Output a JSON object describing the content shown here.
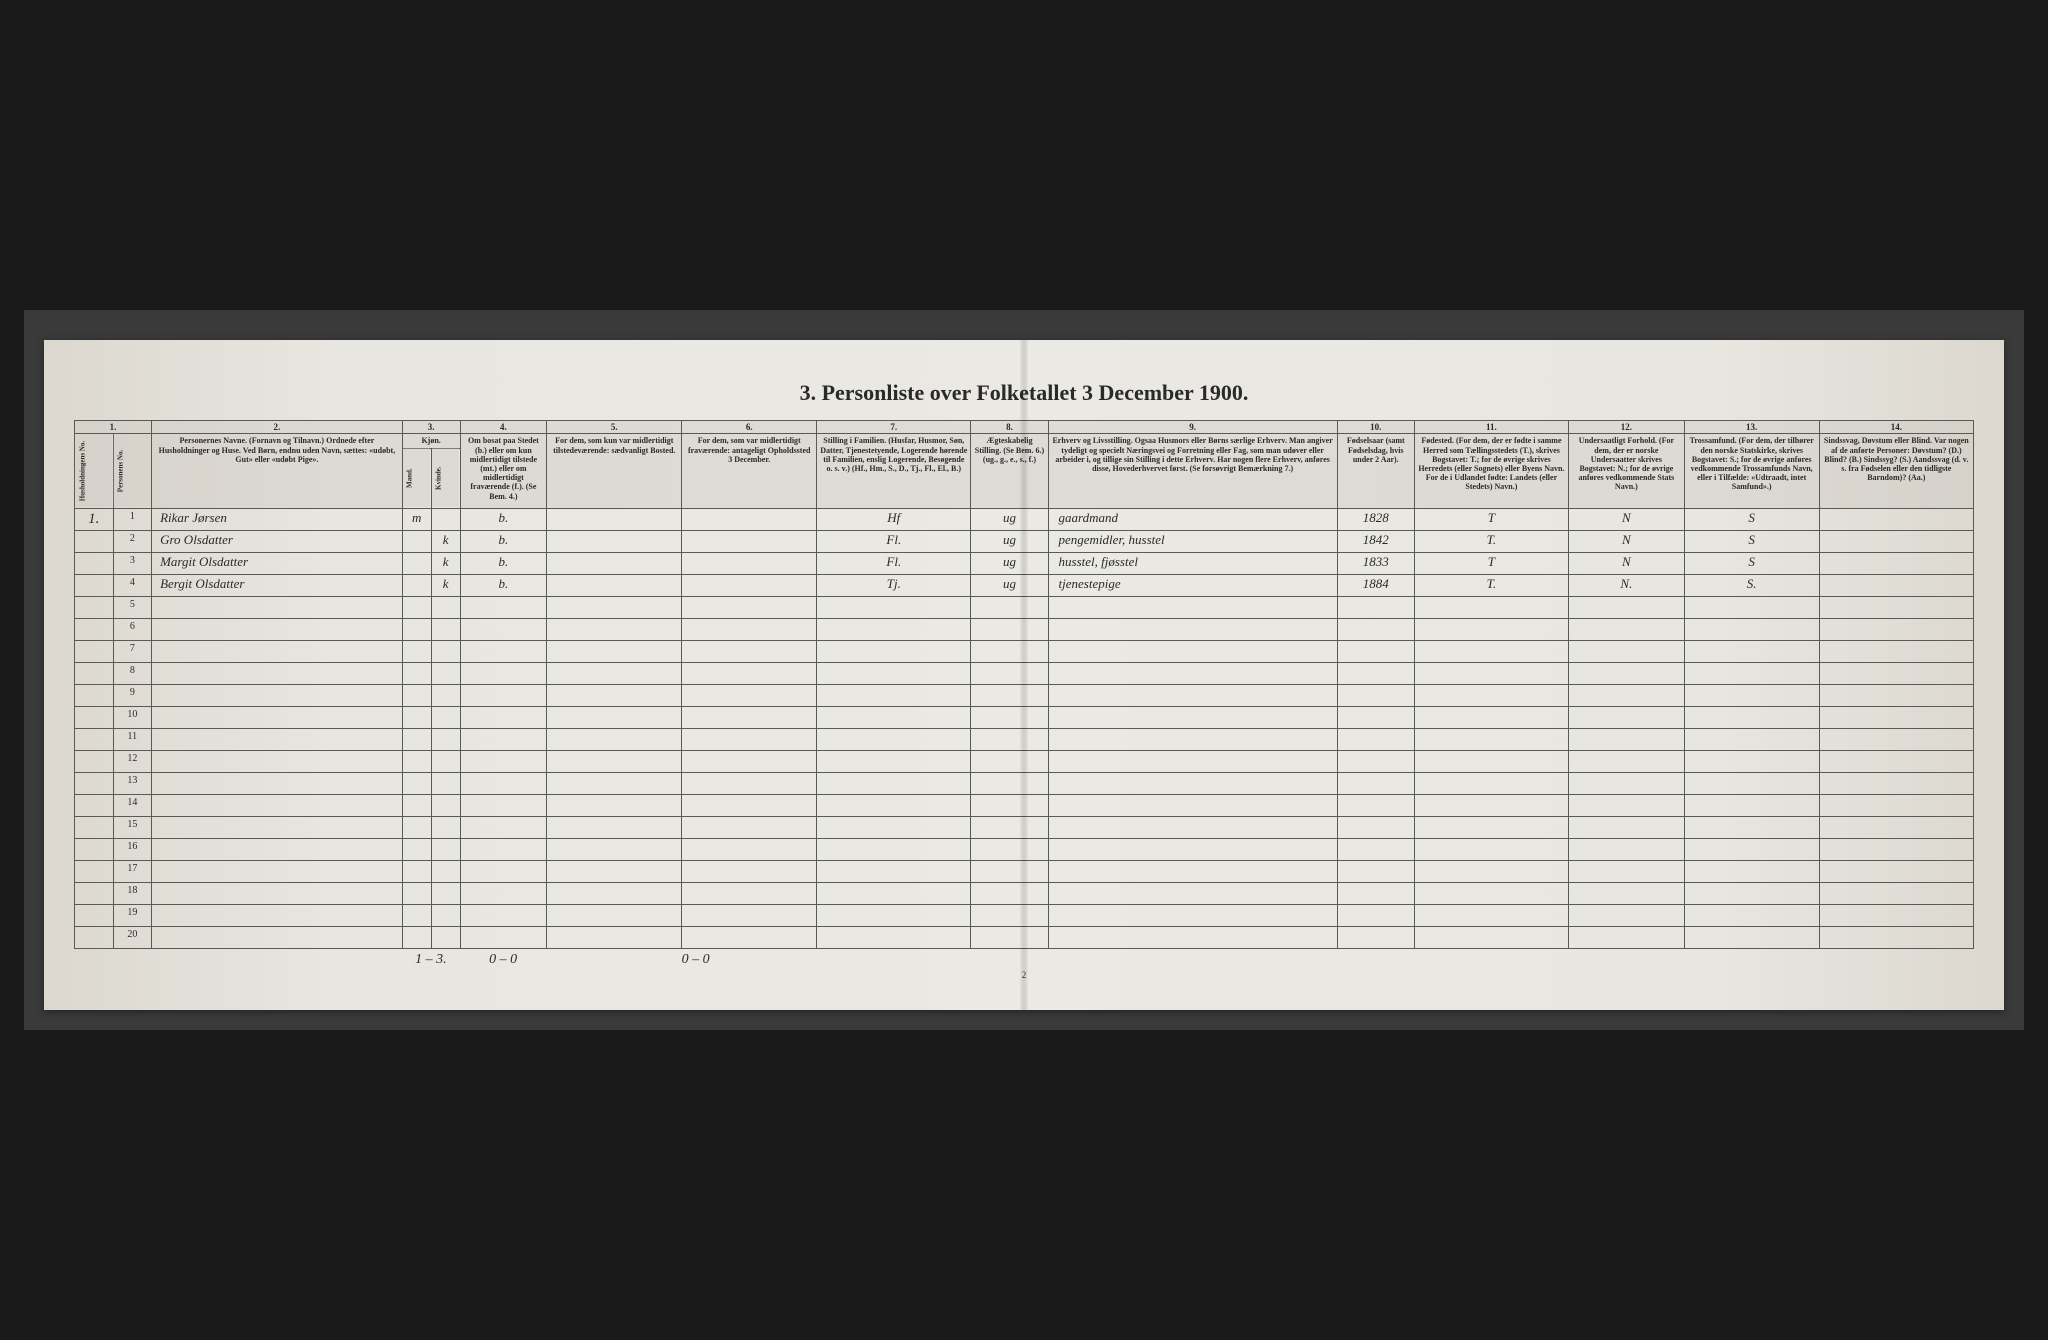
{
  "title": "3. Personliste over Folketallet 3 December 1900.",
  "columns": {
    "c1": "1.",
    "c2": "2.",
    "c3": "3.",
    "c4": "4.",
    "c5": "5.",
    "c6": "6.",
    "c7": "7.",
    "c8": "8.",
    "c9": "9.",
    "c10": "10.",
    "c11": "11.",
    "c12": "12.",
    "c13": "13.",
    "c14": "14."
  },
  "headers": {
    "h1a": "Husholdningens No.",
    "h1b": "Personens No.",
    "h2": "Personernes Navne.\n(Fornavn og Tilnavn.)\nOrdnede efter Husholdninger og Huse.\nVed Børn, endnu uden Navn, sættes: «udøbt, Gut» eller «udøbt Pige».",
    "h3": "Kjøn.",
    "h3a": "Mand.",
    "h3b": "Kvinde.",
    "h4": "Om bosat paa Stedet (b.) eller om kun midlertidigt tilstede (mt.) eller om midlertidigt fraværende (f.). (Se Bem. 4.)",
    "h5": "For dem, som kun var midlertidigt tilstedeværende:\nsædvanligt Bosted.",
    "h6": "For dem, som var midlertidigt fraværende:\nantageligt Opholdssted 3 December.",
    "h7": "Stilling i Familien.\n(Husfar, Husmor, Søn, Datter, Tjenestetyende, Logerende hørende til Familien, enslig Logerende, Besøgende o. s. v.)\n(Hf., Hm., S., D., Tj., Fl., El., B.)",
    "h8": "Ægteskabelig Stilling.\n(Se Bem. 6.)\n(ug., g., e., s., f.)",
    "h9": "Erhverv og Livsstilling.\nOgsaa Husmors eller Børns særlige Erhverv.\nMan angiver tydeligt og specielt Næringsvei og Forretning eller Fag, som man udøver eller arbeider i, og tillige sin Stilling i dette Erhverv.\nHar nogen flere Erhverv, anføres disse, Hovederhvervet først.\n(Se forsøvrigt Bemærkning 7.)",
    "h10": "Fødselsaar\n(samt Fødselsdag, hvis under 2 Aar).",
    "h11": "Fødested.\n(For dem, der er fødte i samme Herred som Tællingsstedets (T.), skrives Bogstavet: T.; for de øvrige skrives Herredets (eller Sognets) eller Byens Navn.\nFor de i Udlandet fødte: Landets (eller Stedets) Navn.)",
    "h12": "Undersaatligt Forhold.\n(For dem, der er norske Undersaatter skrives Bogstavet: N.; for de øvrige anføres vedkommende Stats Navn.)",
    "h13": "Trossamfund.\n(For dem, der tilhører den norske Statskirke, skrives Bogstavet: S.; for de øvrige anføres vedkommende Trossamfunds Navn, eller i Tilfælde: «Udtraadt, intet Samfund».)",
    "h14": "Sindssvag, Døvstum eller Blind.\nVar nogen af de anførte Personer:\nDøvstum? (D.)\nBlind? (B.)\nSindssyg? (S.)\nAandssvag (d. v. s. fra Fødselen eller den tidligste Barndom)? (Aa.)"
  },
  "rows": [
    {
      "hh": "1.",
      "no": "1",
      "name": "Rikar Jørsen",
      "m": "m",
      "k": "",
      "res": "b.",
      "c5": "",
      "c6": "",
      "fam": "Hf",
      "mar": "ug",
      "occ": "gaardmand",
      "year": "1828",
      "birthplace": "T",
      "nat": "N",
      "rel": "S",
      "dis": ""
    },
    {
      "hh": "",
      "no": "2",
      "name": "Gro Olsdatter",
      "m": "",
      "k": "k",
      "res": "b.",
      "c5": "",
      "c6": "",
      "fam": "Fl.",
      "mar": "ug",
      "occ": "pengemidler, husstel",
      "year": "1842",
      "birthplace": "T.",
      "nat": "N",
      "rel": "S",
      "dis": ""
    },
    {
      "hh": "",
      "no": "3",
      "name": "Margit Olsdatter",
      "m": "",
      "k": "k",
      "res": "b.",
      "c5": "",
      "c6": "",
      "fam": "Fl.",
      "mar": "ug",
      "occ": "husstel, fjøsstel",
      "year": "1833",
      "birthplace": "T",
      "nat": "N",
      "rel": "S",
      "dis": ""
    },
    {
      "hh": "",
      "no": "4",
      "name": "Bergit Olsdatter",
      "m": "",
      "k": "k",
      "res": "b.",
      "c5": "",
      "c6": "",
      "fam": "Tj.",
      "mar": "ug",
      "occ": "tjenestepige",
      "year": "1884",
      "birthplace": "T.",
      "nat": "N.",
      "rel": "S.",
      "dis": ""
    }
  ],
  "blank_rows": 16,
  "footer": {
    "tally_mk": "1 – 3.",
    "tally_4": "0 – 0",
    "tally_6": "0 – 0"
  },
  "page_number": "2"
}
